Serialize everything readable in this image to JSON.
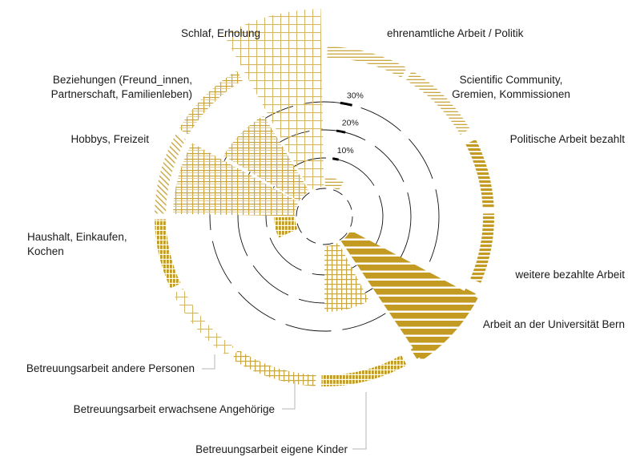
{
  "chart_data": {
    "type": "radial-bar",
    "scale_ticks": [
      "10%",
      "20%",
      "30%"
    ],
    "categories": [
      "ehrenamtliche Arbeit / Politik",
      "Scientific Community, Gremien, Kommissionen",
      "Politische Arbeit bezahlt",
      "weitere bezahlte Arbeit",
      "Arbeit an der Universität Bern",
      "Betreuungsarbeit eigene Kinder",
      "Betreuungsarbeit erwachsene Angehörige",
      "Betreuungsarbeit andere Personen",
      "Haushalt, Einkaufen, Kochen",
      "Hobbys, Freizeit",
      "Beziehungen (Freund_innen, Partnerschaft, Familienleben)",
      "Schlaf, Erholung"
    ],
    "values": [
      2,
      0,
      0,
      0,
      26,
      12,
      0,
      0,
      4,
      22,
      16,
      32
    ],
    "label_lines": [
      [
        "ehrenamtliche Arbeit / Politik"
      ],
      [
        "Scientific Community,",
        "Gremien, Kommissionen"
      ],
      [
        "Politische Arbeit bezahlt"
      ],
      [
        "weitere bezahlte Arbeit"
      ],
      [
        "Arbeit an der Universität Bern"
      ],
      [
        "Betreuungsarbeit eigene Kinder"
      ],
      [
        "Betreuungsarbeit erwachsene Angehörige"
      ],
      [
        "Betreuungsarbeit andere Personen"
      ],
      [
        "Haushalt, Einkaufen,",
        "Kochen"
      ],
      [
        "Hobbys, Freizeit"
      ],
      [
        "Beziehungen (Freund_innen,",
        "Partnerschaft, Familienleben)"
      ],
      [
        "Schlaf, Erholung"
      ]
    ],
    "colors": {
      "accent": "#c39a22",
      "pale": "#e3cd8a",
      "grid": "#111111",
      "leader": "#b5b5b5"
    }
  }
}
